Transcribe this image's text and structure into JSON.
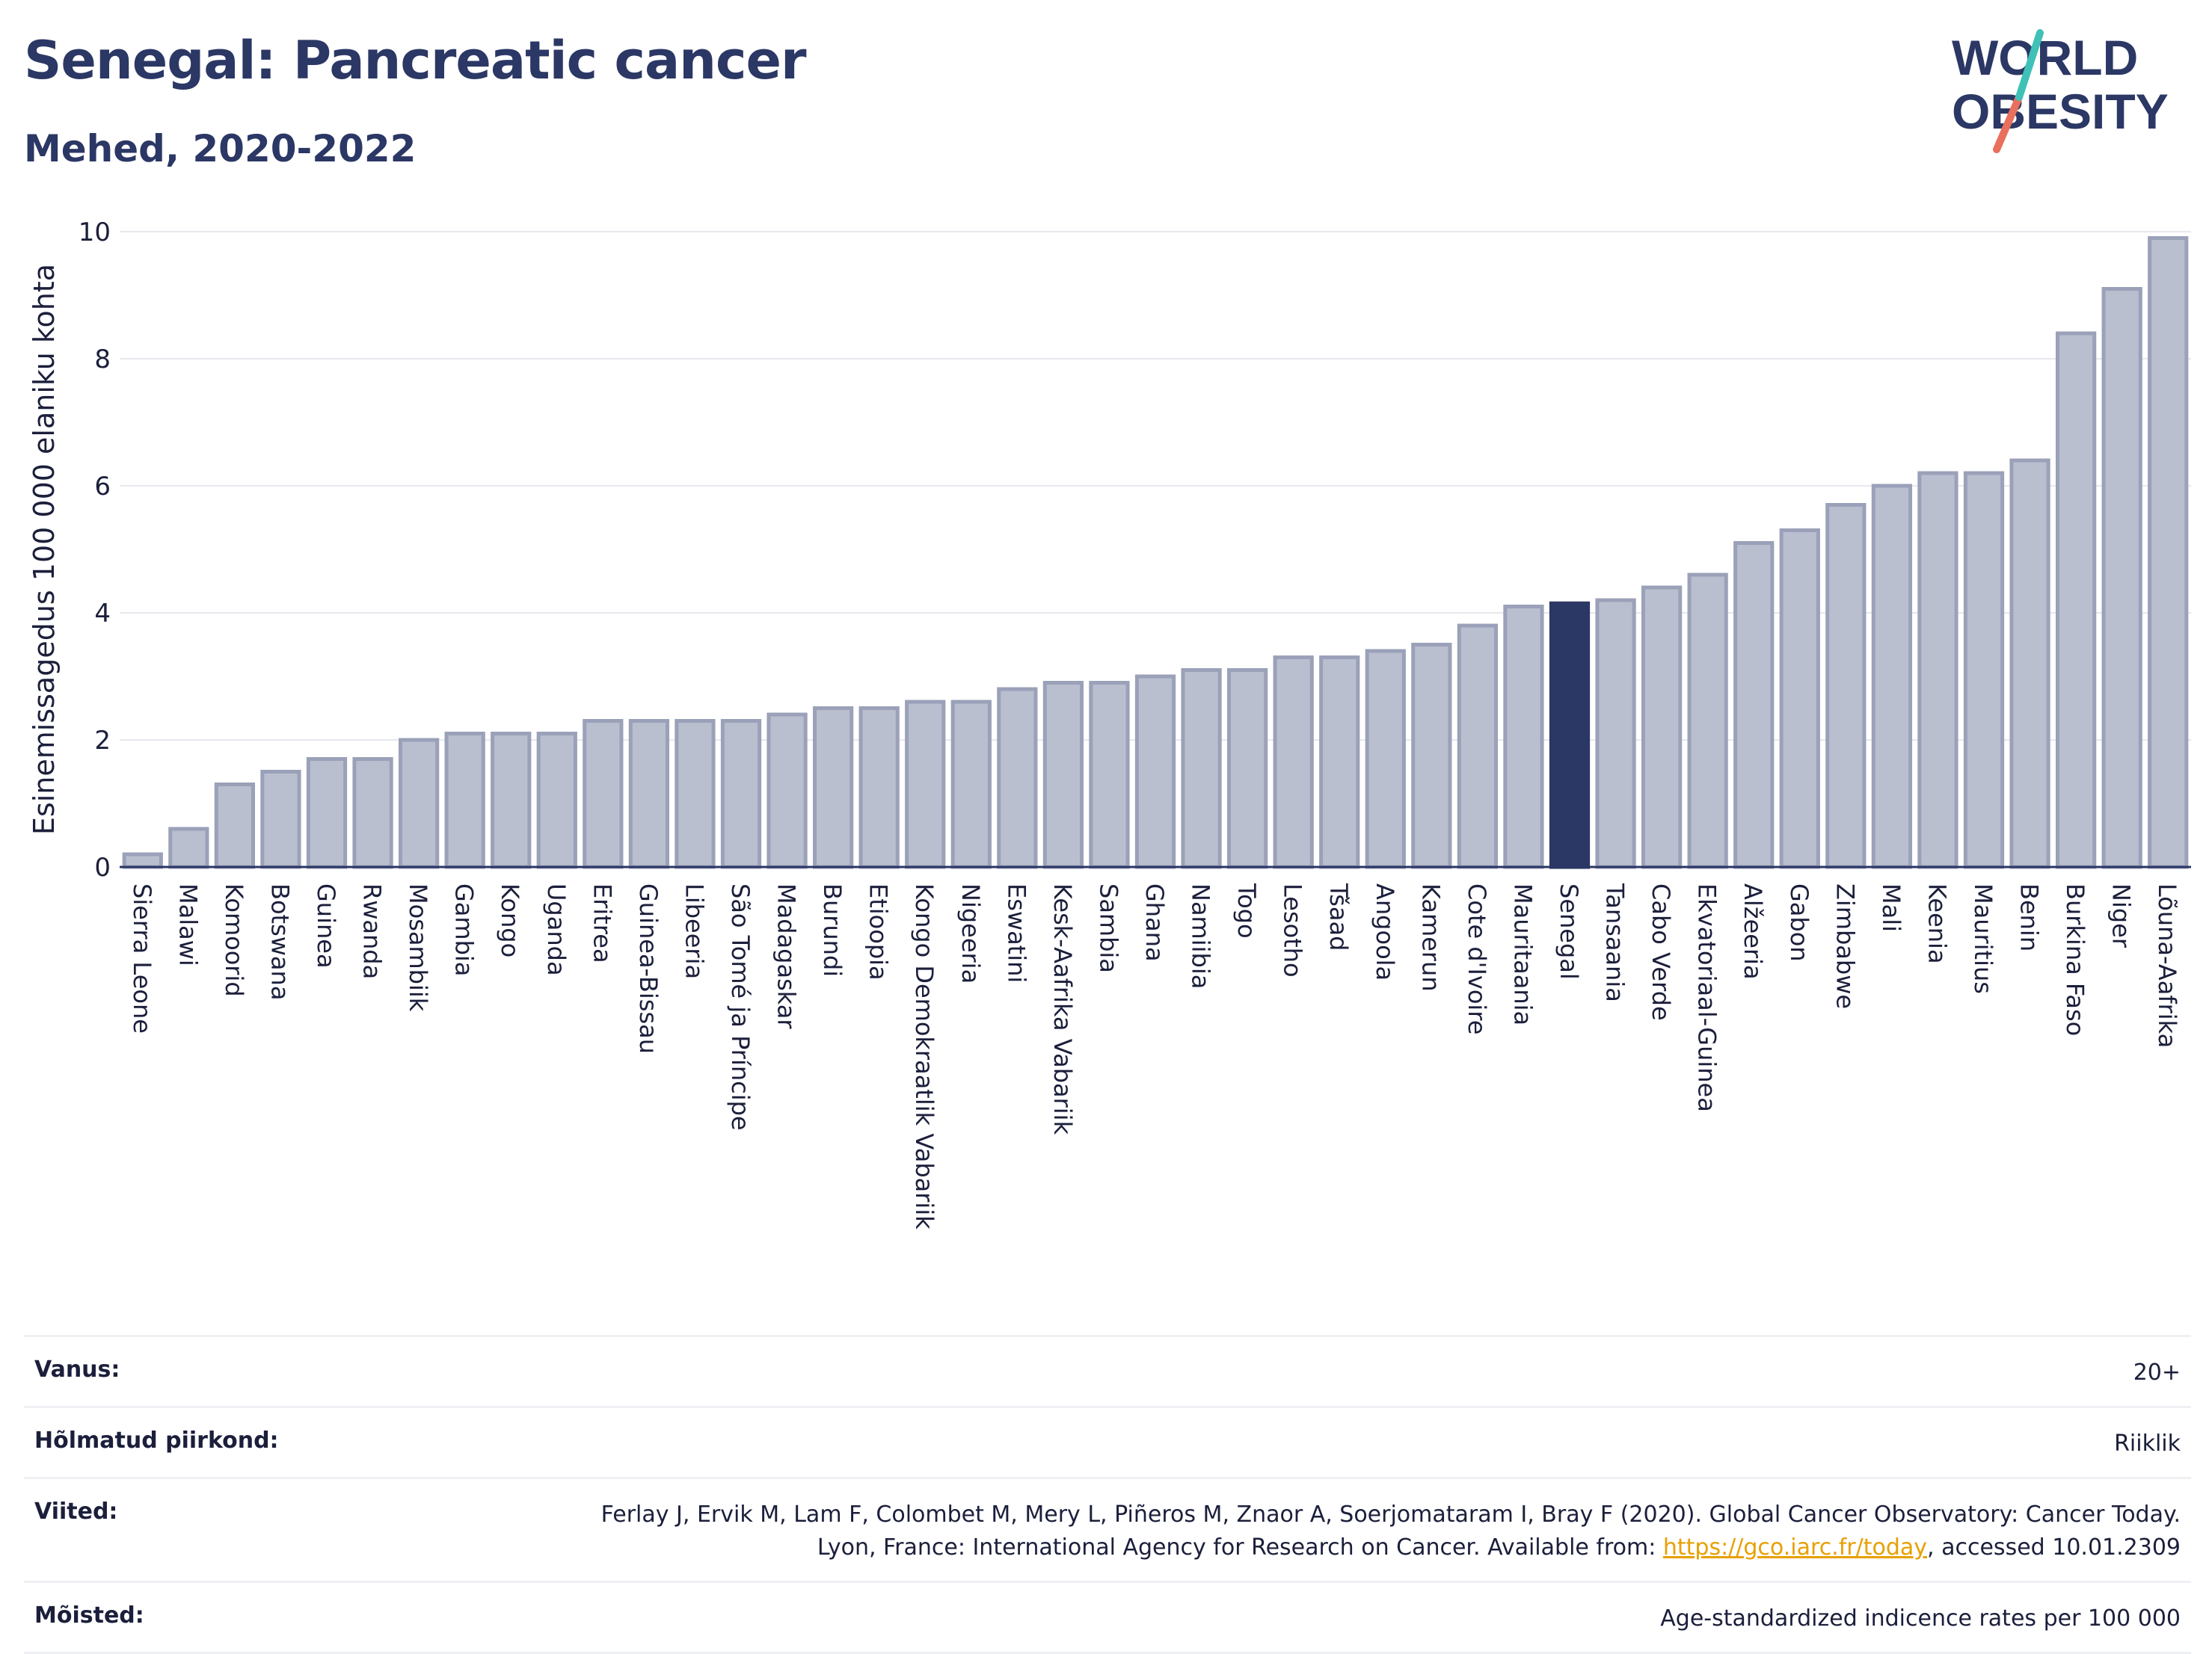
{
  "header": {
    "title": "Senegal: Pancreatic cancer",
    "subtitle": "Mehed, 2020-2022",
    "logo_text_line1": "WORLD",
    "logo_text_line2": "OBESITY"
  },
  "colors": {
    "bar_default": "#b9bfcf",
    "bar_border": "#9aa1b8",
    "bar_highlight": "#2b3764",
    "title": "#2b3764",
    "link": "#e8a000"
  },
  "chart_data": {
    "type": "bar",
    "title": "Senegal: Pancreatic cancer",
    "subtitle": "Mehed, 2020-2022",
    "xlabel": "",
    "ylabel": "Esinemissagedus 100 000 elaniku kohta",
    "ylim": [
      0,
      10
    ],
    "yticks": [
      0,
      2,
      4,
      6,
      8,
      10
    ],
    "grid": true,
    "highlight": "Senegal",
    "categories": [
      "Sierra Leone",
      "Malawi",
      "Komoorid",
      "Botswana",
      "Guinea",
      "Rwanda",
      "Mosambiik",
      "Gambia",
      "Kongo",
      "Uganda",
      "Eritrea",
      "Guinea-Bissau",
      "Libeeria",
      "São Tomé ja Príncipe",
      "Madagaskar",
      "Burundi",
      "Etioopia",
      "Kongo Demokraatlik Vabariik",
      "Nigeeria",
      "Eswatini",
      "Kesk-Aafrika Vabariik",
      "Sambia",
      "Ghana",
      "Namiibia",
      "Togo",
      "Lesotho",
      "Tšaad",
      "Angoola",
      "Kamerun",
      "Cote d'Ivoire",
      "Mauritaania",
      "Senegal",
      "Tansaania",
      "Cabo Verde",
      "Ekvatoriaal-Guinea",
      "Alžeeria",
      "Gabon",
      "Zimbabwe",
      "Mali",
      "Keenia",
      "Mauritius",
      "Benin",
      "Burkina Faso",
      "Niger",
      "Lõuna-Aafrika"
    ],
    "values": [
      0.2,
      0.6,
      1.3,
      1.5,
      1.7,
      1.7,
      2.0,
      2.1,
      2.1,
      2.1,
      2.3,
      2.3,
      2.3,
      2.3,
      2.4,
      2.5,
      2.5,
      2.6,
      2.6,
      2.8,
      2.9,
      2.9,
      3.0,
      3.1,
      3.1,
      3.3,
      3.3,
      3.4,
      3.5,
      3.8,
      4.1,
      4.15,
      4.2,
      4.4,
      4.6,
      5.1,
      5.3,
      5.7,
      6.0,
      6.2,
      6.2,
      6.4,
      8.4,
      9.1,
      9.9
    ]
  },
  "footer": {
    "rows": [
      {
        "label": "Vanus:",
        "value": "20+"
      },
      {
        "label": "Hõlmatud piirkond:",
        "value": "Riiklik"
      },
      {
        "label": "Viited:",
        "value_before": "Ferlay J, Ervik M, Lam F, Colombet M, Mery L, Piñeros M, Znaor A, Soerjomataram I, Bray F (2020). Global Cancer Observatory: Cancer Today. Lyon, France: International Agency for Research on Cancer. Available from: ",
        "link": "https://gco.iarc.fr/today",
        "value_after": ", accessed 10.01.2309"
      },
      {
        "label": "Mõisted:",
        "value": "Age-standardized indicence rates per 100 000"
      }
    ]
  }
}
